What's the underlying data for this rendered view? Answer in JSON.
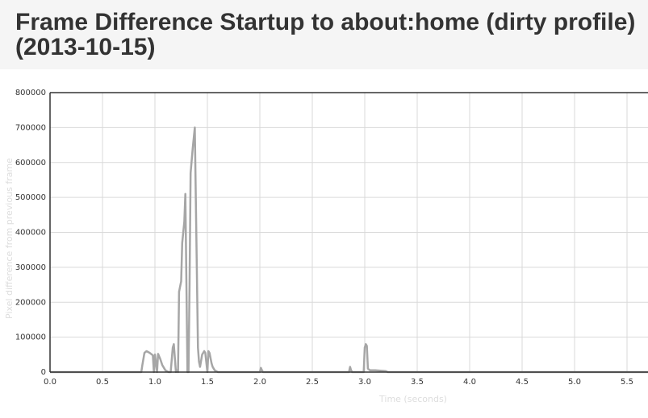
{
  "page": {
    "title": "Frame Difference Startup to about:home (dirty profile) (2013-10-15)"
  },
  "chart_data": {
    "type": "line",
    "title": "Frame Difference Startup to about:home (dirty profile) (2013-10-15)",
    "xlabel": "Time (seconds)",
    "ylabel": "Pixel difference from previous frame",
    "xlim": [
      0,
      5.7
    ],
    "ylim": [
      0,
      800000
    ],
    "x_ticks": [
      "0.0",
      "0.5",
      "1.0",
      "1.5",
      "2.0",
      "2.5",
      "3.0",
      "3.5",
      "4.0",
      "4.5",
      "5.0",
      "5.5"
    ],
    "y_ticks": [
      "0",
      "100000",
      "200000",
      "300000",
      "400000",
      "500000",
      "600000",
      "700000",
      "800000"
    ],
    "grid": true,
    "legend": "none",
    "colors": {
      "line": "#a6a6a6",
      "grid": "#d9d9d9",
      "axis": "#333333",
      "label": "#dddddd",
      "tick": "#333333"
    },
    "series": [
      {
        "x": [
          0.0,
          0.87,
          0.88,
          0.9,
          0.92,
          0.95,
          0.98,
          0.99,
          1.0,
          1.02,
          1.03,
          1.05,
          1.07,
          1.1,
          1.13,
          1.15,
          1.17,
          1.18,
          1.2,
          1.21,
          1.22,
          1.23,
          1.25,
          1.26,
          1.28,
          1.29,
          1.31,
          1.32,
          1.33,
          1.34,
          1.36,
          1.38,
          1.41,
          1.42,
          1.43,
          1.45,
          1.47,
          1.48,
          1.5,
          1.51,
          1.52,
          1.54,
          1.55,
          1.57,
          1.6,
          1.65,
          2.0,
          2.01,
          2.02,
          2.03,
          2.85,
          2.86,
          2.87,
          2.88,
          2.99,
          3.0,
          3.01,
          3.02,
          3.03,
          3.05,
          3.1,
          3.2,
          3.22,
          5.7
        ],
        "y": [
          0,
          0,
          20000,
          55000,
          60000,
          55000,
          48000,
          0,
          50000,
          0,
          52000,
          38000,
          20000,
          5000,
          0,
          0,
          70000,
          80000,
          0,
          5000,
          0,
          230000,
          260000,
          370000,
          430000,
          510000,
          0,
          0,
          250000,
          570000,
          640000,
          700000,
          70000,
          30000,
          15000,
          50000,
          60000,
          55000,
          0,
          60000,
          55000,
          25000,
          15000,
          5000,
          0,
          0,
          0,
          12000,
          5000,
          0,
          0,
          15000,
          5000,
          0,
          0,
          70000,
          80000,
          75000,
          10000,
          5000,
          5000,
          3000,
          0,
          0
        ]
      }
    ]
  }
}
